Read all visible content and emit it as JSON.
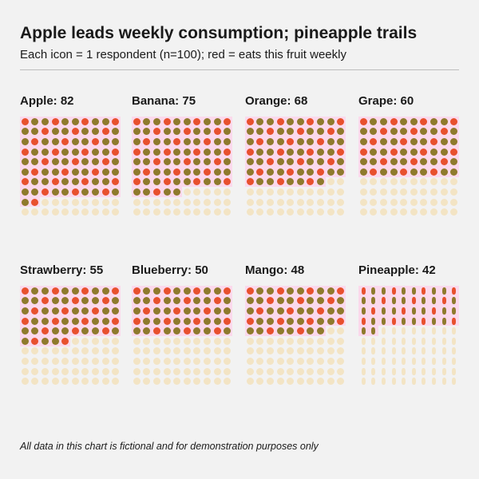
{
  "chart_data": {
    "type": "pictogram",
    "title": "Apple leads weekly consumption; pineapple trails",
    "subtitle": "Each icon = 1 respondent (n=100); red = eats this fruit weekly",
    "footer": "All data in this chart is fictional and for demonstration purposes only",
    "total_per_panel": 100,
    "panels": [
      {
        "fruit": "Apple",
        "label": "Apple: 82",
        "value": 82
      },
      {
        "fruit": "Banana",
        "label": "Banana: 75",
        "value": 75
      },
      {
        "fruit": "Orange",
        "label": "Orange: 68",
        "value": 68
      },
      {
        "fruit": "Grape",
        "label": "Grape: 60",
        "value": 60
      },
      {
        "fruit": "Strawberry",
        "label": "Strawberry: 55",
        "value": 55
      },
      {
        "fruit": "Blueberry",
        "label": "Blueberry: 50",
        "value": 50
      },
      {
        "fruit": "Mango",
        "label": "Mango: 48",
        "value": 48
      },
      {
        "fruit": "Pineapple",
        "label": "Pineapple: 42",
        "value": 42
      }
    ],
    "colors": {
      "filled_a": "#e8502e",
      "filled_b": "#8f7a2c",
      "empty": "#f3e4c4",
      "highlight": "#fbd9ec"
    }
  }
}
